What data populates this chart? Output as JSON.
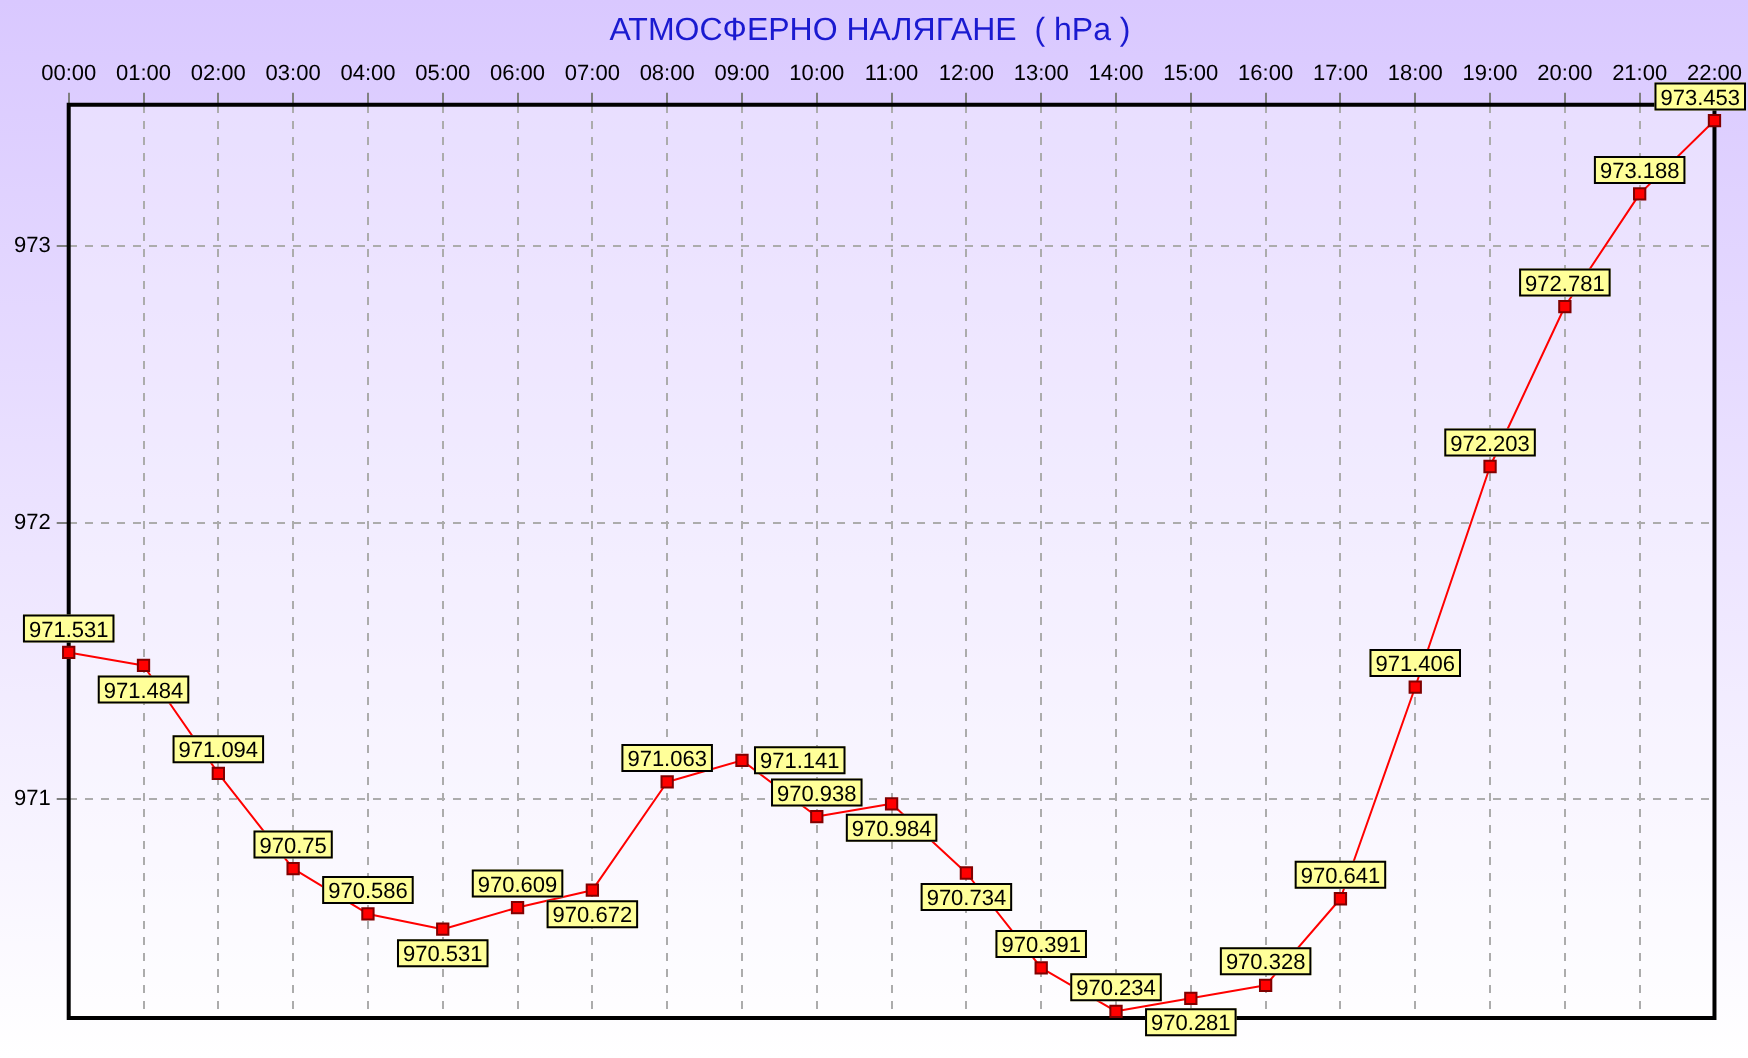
{
  "chart_data": {
    "type": "line",
    "title": "АТМОСФЕРНО НАЛЯГАНЕ  ( hPa )",
    "categories": [
      "00:00",
      "01:00",
      "02:00",
      "03:00",
      "04:00",
      "05:00",
      "06:00",
      "07:00",
      "08:00",
      "09:00",
      "10:00",
      "11:00",
      "12:00",
      "13:00",
      "14:00",
      "15:00",
      "16:00",
      "17:00",
      "18:00",
      "19:00",
      "20:00",
      "21:00",
      "22:00"
    ],
    "series": [
      {
        "color": "#ff0000",
        "values": [
          971.531,
          971.484,
          971.094,
          970.75,
          970.586,
          970.531,
          970.609,
          970.672,
          971.063,
          971.141,
          970.938,
          970.984,
          970.734,
          970.391,
          970.234,
          970.281,
          970.328,
          970.641,
          971.406,
          972.203,
          972.781,
          973.188,
          973.453
        ]
      }
    ],
    "ylim": [
      970.21,
      973.51
    ],
    "yticks": [
      971,
      972,
      973
    ],
    "grid": true,
    "marker": "square",
    "line_style": "solid",
    "data_labels": true,
    "legend": false
  }
}
